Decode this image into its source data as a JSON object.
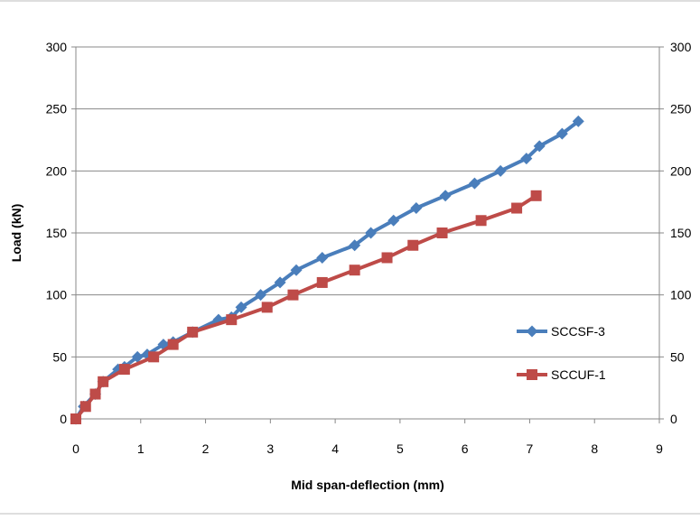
{
  "chart_data": {
    "type": "line",
    "title": "",
    "xlabel": "Mid span-deflection (mm)",
    "ylabel": "Load (kN)",
    "xlim": [
      0,
      9
    ],
    "ylim": [
      0,
      300
    ],
    "x_ticks": [
      "0",
      "1",
      "2",
      "3",
      "4",
      "5",
      "6",
      "7",
      "8",
      "9"
    ],
    "y_ticks": [
      "0",
      "50",
      "100",
      "150",
      "200",
      "250",
      "300"
    ],
    "y2_ticks": [
      "0",
      "50",
      "100",
      "150",
      "200",
      "250",
      "300"
    ],
    "grid": "horizontal",
    "legend_position": "right",
    "series": [
      {
        "name": "SCCSF-3",
        "color": "#4a7ebb",
        "marker": "diamond",
        "x": [
          0,
          0.12,
          0.3,
          0.42,
          0.65,
          0.75,
          0.95,
          1.1,
          1.35,
          1.5,
          1.8,
          2.2,
          2.4,
          2.55,
          2.85,
          3.15,
          3.4,
          3.8,
          4.3,
          4.55,
          4.9,
          5.25,
          5.7,
          6.15,
          6.55,
          6.95,
          7.15,
          7.5,
          7.75
        ],
        "y": [
          0,
          10,
          20,
          30,
          40,
          42,
          50,
          52,
          60,
          62,
          70,
          80,
          82,
          90,
          100,
          110,
          120,
          130,
          140,
          150,
          160,
          170,
          180,
          190,
          200,
          210,
          220,
          230,
          240
        ]
      },
      {
        "name": "SCCUF-1",
        "color": "#be4b48",
        "marker": "square",
        "x": [
          0,
          0.15,
          0.3,
          0.42,
          0.75,
          1.2,
          1.5,
          1.8,
          2.4,
          2.95,
          3.35,
          3.8,
          4.3,
          4.8,
          5.2,
          5.65,
          6.25,
          6.8,
          7.1
        ],
        "y": [
          0,
          10,
          20,
          30,
          40,
          50,
          60,
          70,
          80,
          90,
          100,
          110,
          120,
          130,
          140,
          150,
          160,
          170,
          180
        ]
      }
    ]
  }
}
